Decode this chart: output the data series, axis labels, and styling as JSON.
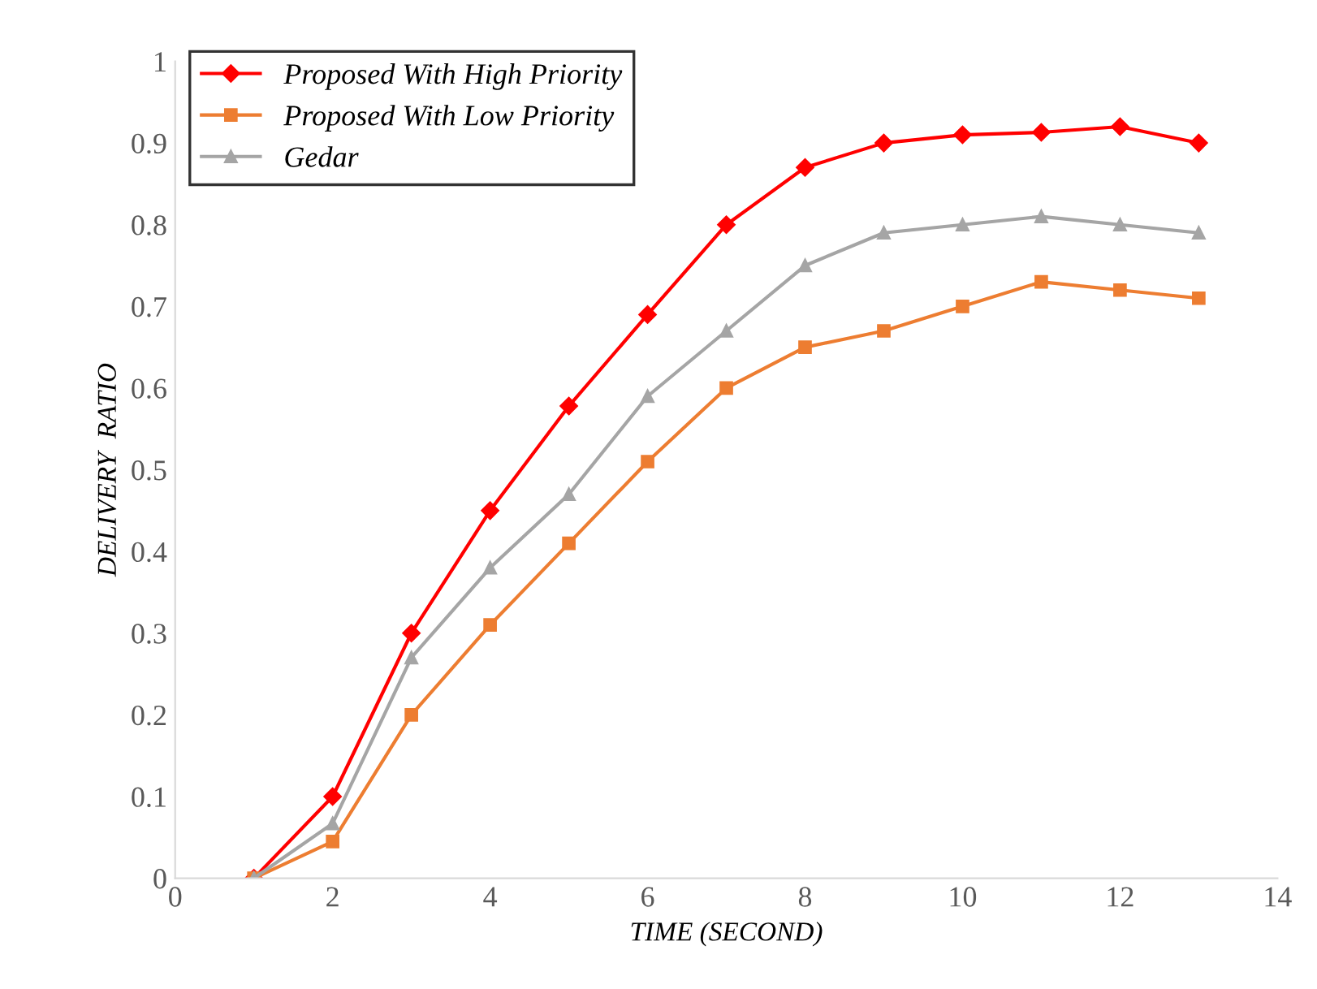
{
  "chart_data": {
    "type": "line",
    "xlabel": "TIME (SECOND)",
    "ylabel": "DELIVERY  RATIO",
    "x": [
      1,
      2,
      3,
      4,
      5,
      6,
      7,
      8,
      9,
      10,
      11,
      12,
      13
    ],
    "series": [
      {
        "name": "Proposed With High Priority",
        "color": "#ff0000",
        "marker": "diamond",
        "values": [
          0,
          0.1,
          0.3,
          0.45,
          0.578,
          0.69,
          0.8,
          0.87,
          0.9,
          0.91,
          0.913,
          0.92,
          0.9
        ]
      },
      {
        "name": "Proposed With Low Priority",
        "color": "#ed7d31",
        "marker": "square",
        "values": [
          0,
          0.045,
          0.2,
          0.31,
          0.41,
          0.51,
          0.6,
          0.65,
          0.67,
          0.7,
          0.73,
          0.72,
          0.71
        ]
      },
      {
        "name": "Gedar",
        "color": "#a5a5a5",
        "marker": "triangle",
        "values": [
          0,
          0.067,
          0.27,
          0.38,
          0.47,
          0.59,
          0.67,
          0.75,
          0.79,
          0.8,
          0.81,
          0.8,
          0.79
        ]
      }
    ],
    "xlim": [
      0,
      14
    ],
    "xticks": [
      0,
      2,
      4,
      6,
      8,
      10,
      12,
      14
    ],
    "ylim": [
      0,
      1
    ],
    "yticks": [
      0,
      0.1,
      0.2,
      0.3,
      0.4,
      0.5,
      0.6,
      0.7,
      0.8,
      0.9,
      1
    ],
    "grid": false,
    "legend": "top left"
  }
}
